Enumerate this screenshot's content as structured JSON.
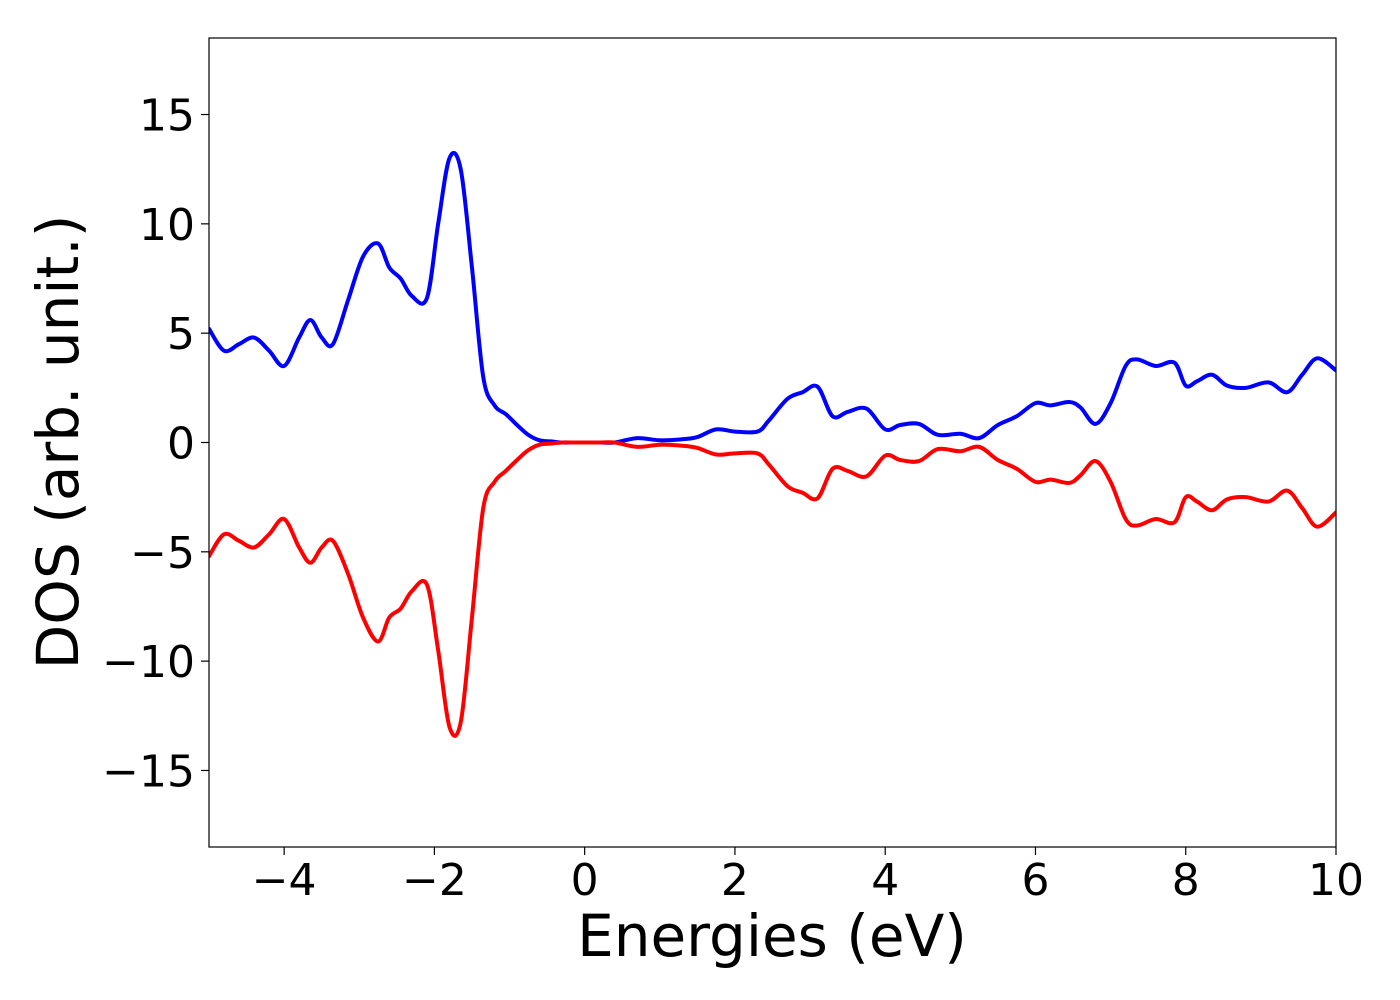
{
  "chart_data": {
    "type": "line",
    "title": "",
    "xlabel": "Energies (eV)",
    "ylabel": "DOS (arb. unit.)",
    "xlim": [
      -5,
      10
    ],
    "ylim": [
      -18.5,
      18.5
    ],
    "grid": false,
    "legend": "none",
    "xticks": [
      {
        "value": -4,
        "label": "−4"
      },
      {
        "value": -2,
        "label": "−2"
      },
      {
        "value": 0,
        "label": "0"
      },
      {
        "value": 2,
        "label": "2"
      },
      {
        "value": 4,
        "label": "4"
      },
      {
        "value": 6,
        "label": "6"
      },
      {
        "value": 8,
        "label": "8"
      },
      {
        "value": 10,
        "label": "10"
      }
    ],
    "yticks": [
      {
        "value": 15,
        "label": "15"
      },
      {
        "value": 10,
        "label": "10"
      },
      {
        "value": 5,
        "label": "5"
      },
      {
        "value": 0,
        "label": "0"
      },
      {
        "value": -5,
        "label": "−5"
      },
      {
        "value": -10,
        "label": "−10"
      },
      {
        "value": -15,
        "label": "−15"
      }
    ],
    "series": [
      {
        "color": "#0000ff",
        "x": [
          -5.0,
          -4.8,
          -4.6,
          -4.4,
          -4.2,
          -4.0,
          -3.8,
          -3.65,
          -3.5,
          -3.35,
          -3.15,
          -2.95,
          -2.75,
          -2.6,
          -2.45,
          -2.3,
          -2.1,
          -1.95,
          -1.8,
          -1.65,
          -1.5,
          -1.35,
          -1.2,
          -1.05,
          -0.9,
          -0.75,
          -0.6,
          -0.45,
          -0.3,
          -0.15,
          0.0,
          0.2,
          0.4,
          0.7,
          1.0,
          1.3,
          1.5,
          1.75,
          2.0,
          2.3,
          2.45,
          2.7,
          2.9,
          3.1,
          3.3,
          3.5,
          3.75,
          4.0,
          4.2,
          4.45,
          4.7,
          5.0,
          5.25,
          5.5,
          5.75,
          6.0,
          6.2,
          6.45,
          6.6,
          6.8,
          7.0,
          7.2,
          7.35,
          7.6,
          7.85,
          8.0,
          8.15,
          8.35,
          8.55,
          8.8,
          9.1,
          9.35,
          9.55,
          9.75,
          10.0
        ],
        "y": [
          5.2,
          4.2,
          4.5,
          4.8,
          4.2,
          3.5,
          4.8,
          5.6,
          4.8,
          4.5,
          6.5,
          8.5,
          9.1,
          8.0,
          7.5,
          6.7,
          6.6,
          10.0,
          13.0,
          12.5,
          8.0,
          3.0,
          1.7,
          1.3,
          0.8,
          0.35,
          0.1,
          0.05,
          0.0,
          0.0,
          0.0,
          0.0,
          0.0,
          0.2,
          0.1,
          0.15,
          0.25,
          0.6,
          0.5,
          0.5,
          1.0,
          2.0,
          2.3,
          2.55,
          1.2,
          1.4,
          1.55,
          0.6,
          0.8,
          0.85,
          0.35,
          0.4,
          0.2,
          0.8,
          1.2,
          1.8,
          1.7,
          1.85,
          1.6,
          0.85,
          1.8,
          3.5,
          3.8,
          3.5,
          3.65,
          2.6,
          2.8,
          3.1,
          2.6,
          2.5,
          2.75,
          2.3,
          3.1,
          3.85,
          3.3
        ]
      },
      {
        "color": "#ff0000",
        "x": [
          -5.0,
          -4.8,
          -4.6,
          -4.4,
          -4.2,
          -4.0,
          -3.8,
          -3.65,
          -3.5,
          -3.35,
          -3.15,
          -2.95,
          -2.75,
          -2.6,
          -2.45,
          -2.3,
          -2.1,
          -1.95,
          -1.8,
          -1.65,
          -1.5,
          -1.35,
          -1.2,
          -1.05,
          -0.9,
          -0.75,
          -0.6,
          -0.45,
          -0.3,
          -0.15,
          0.0,
          0.2,
          0.4,
          0.7,
          1.0,
          1.3,
          1.5,
          1.75,
          2.0,
          2.3,
          2.45,
          2.7,
          2.9,
          3.1,
          3.3,
          3.5,
          3.75,
          4.0,
          4.2,
          4.45,
          4.7,
          5.0,
          5.25,
          5.5,
          5.75,
          6.0,
          6.2,
          6.45,
          6.6,
          6.8,
          7.0,
          7.2,
          7.35,
          7.6,
          7.85,
          8.0,
          8.15,
          8.35,
          8.55,
          8.8,
          9.1,
          9.35,
          9.55,
          9.75,
          10.0
        ],
        "y": [
          -5.2,
          -4.2,
          -4.5,
          -4.8,
          -4.2,
          -3.5,
          -4.8,
          -5.5,
          -4.8,
          -4.5,
          -6.0,
          -8.0,
          -9.1,
          -8.0,
          -7.6,
          -6.8,
          -6.5,
          -9.5,
          -13.0,
          -12.8,
          -8.0,
          -3.0,
          -1.8,
          -1.3,
          -0.8,
          -0.35,
          -0.1,
          -0.05,
          0.0,
          0.0,
          0.0,
          0.0,
          0.0,
          -0.2,
          -0.1,
          -0.15,
          -0.25,
          -0.55,
          -0.5,
          -0.5,
          -1.0,
          -2.0,
          -2.3,
          -2.55,
          -1.2,
          -1.3,
          -1.55,
          -0.6,
          -0.8,
          -0.85,
          -0.3,
          -0.4,
          -0.2,
          -0.8,
          -1.2,
          -1.8,
          -1.7,
          -1.85,
          -1.5,
          -0.85,
          -1.8,
          -3.5,
          -3.8,
          -3.5,
          -3.65,
          -2.5,
          -2.7,
          -3.1,
          -2.6,
          -2.5,
          -2.7,
          -2.2,
          -3.0,
          -3.85,
          -3.2
        ]
      }
    ]
  }
}
